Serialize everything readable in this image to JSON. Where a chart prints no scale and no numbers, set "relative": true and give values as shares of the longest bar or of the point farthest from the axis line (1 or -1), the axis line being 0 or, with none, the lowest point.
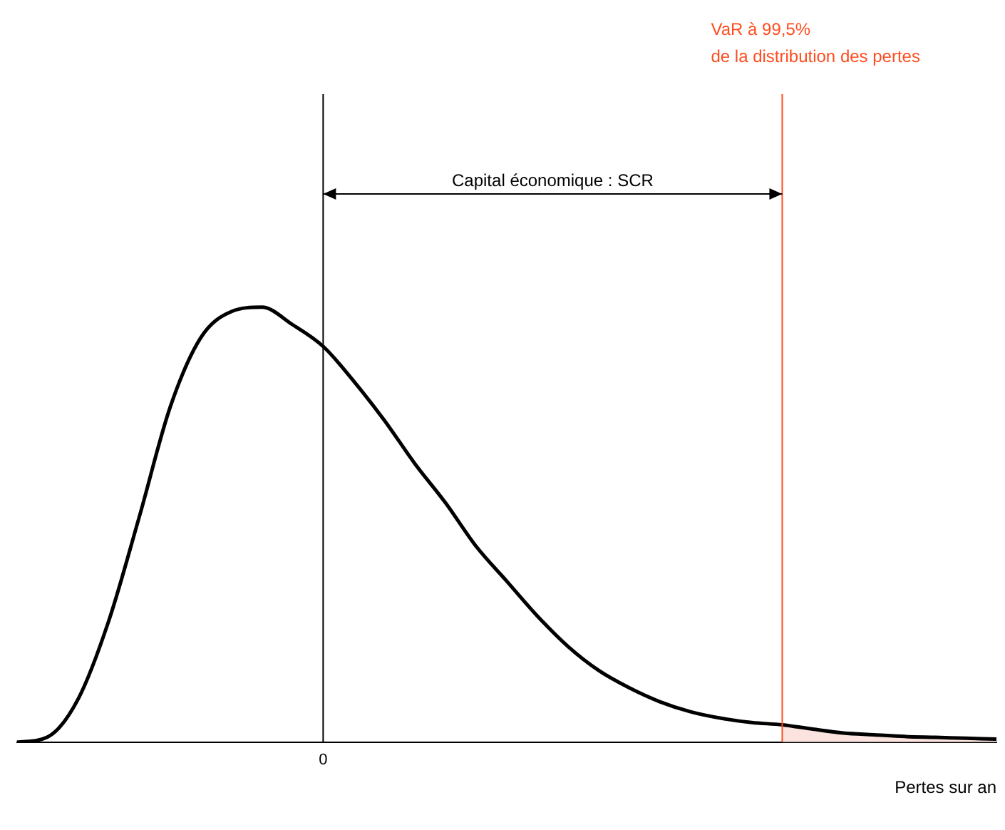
{
  "chart_data": {
    "type": "line",
    "relative": true,
    "xlabel": "Pertes sur an",
    "legend": false,
    "marker": "none",
    "categories": [
      null,
      null,
      null,
      null,
      null,
      null,
      null,
      null,
      null,
      null,
      null,
      null,
      null,
      null,
      null,
      null,
      null,
      null,
      null,
      null,
      null,
      null,
      null,
      null,
      null,
      null,
      null,
      null,
      null,
      null,
      null,
      null,
      null
    ],
    "series": [
      {
        "type": "line",
        "color": "#000000",
        "values": [
          0,
          0.012,
          0.1,
          0.28,
          0.52,
          0.77,
          0.93,
          0.99,
          1,
          0.96,
          0.91,
          0.83,
          0.74,
          0.64,
          0.55,
          0.45,
          0.37,
          0.29,
          0.22,
          0.165,
          0.125,
          0.093,
          0.07,
          0.055,
          0.045,
          0.04,
          0.03,
          0.021,
          0.017,
          0.013,
          0.011,
          0.009,
          0.007
        ]
      },
      {
        "type": "area",
        "color": "#fbe3df",
        "values": [
          null,
          null,
          null,
          null,
          null,
          null,
          null,
          null,
          null,
          null,
          null,
          null,
          null,
          null,
          null,
          null,
          null,
          null,
          null,
          null,
          null,
          null,
          null,
          null,
          null,
          0.04,
          0.03,
          0.021,
          0.017,
          0.013,
          0.011,
          0.009,
          0.007
        ]
      }
    ],
    "annotations": [
      "0",
      "VaR à 99,5%\nde la distribution des pertes",
      "Capital économique : SCR"
    ]
  }
}
